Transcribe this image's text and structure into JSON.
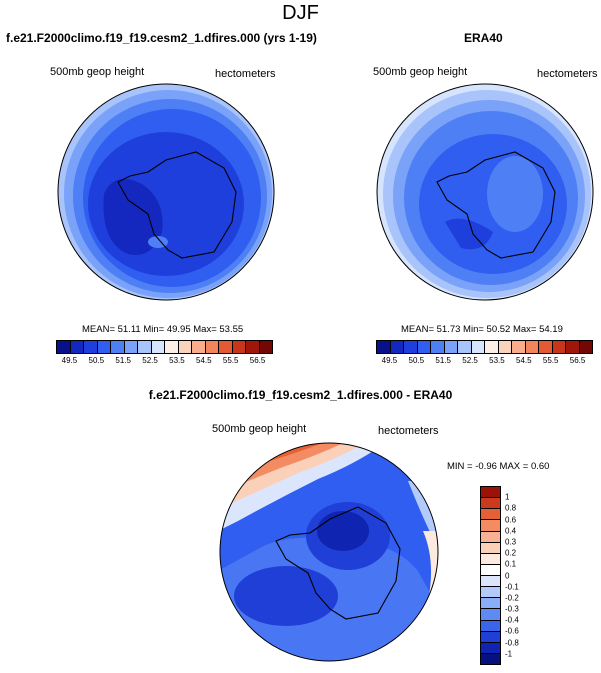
{
  "title": "DJF",
  "panels": {
    "left": {
      "title": "f.e21.F2000climo.f19_f19.cesm2_1.dfires.000 (yrs 1-19)",
      "variable": "500mb geop height",
      "units": "hectometers",
      "stats": "MEAN=  51.11   Min=  49.95   Max=  53.55"
    },
    "right": {
      "title": "ERA40",
      "variable": "500mb geop height",
      "units": "hectometers",
      "stats": "MEAN=  51.73   Min=  50.52   Max=  54.19"
    },
    "diff": {
      "title": "f.e21.F2000climo.f19_f19.cesm2_1.dfires.000 - ERA40",
      "variable": "500mb geop height",
      "units": "hectometers",
      "stats": "MIN =  -0.96  MAX =   0.60"
    }
  },
  "colorbar_abs": {
    "ticks": [
      "49.5",
      "50.5",
      "51.5",
      "52.5",
      "53.5",
      "54.5",
      "55.5",
      "56.5"
    ],
    "colors": [
      "#08108c",
      "#1428bf",
      "#1e3fdc",
      "#2f5ef0",
      "#4f7ff5",
      "#7aa2f8",
      "#a9c4fb",
      "#d7e4fd",
      "#fbeee6",
      "#fbd3bc",
      "#f8ae8c",
      "#f3855c",
      "#e45a35",
      "#c9341c",
      "#a0170a",
      "#750606"
    ]
  },
  "colorbar_diff": {
    "ticks": [
      "1",
      "0.8",
      "0.6",
      "0.4",
      "0.3",
      "0.2",
      "0.1",
      "0",
      "-0.1",
      "-0.2",
      "-0.3",
      "-0.4",
      "-0.6",
      "-0.8",
      "-1"
    ],
    "colors": [
      "#9b1208",
      "#cc3a1e",
      "#e66035",
      "#f48c63",
      "#f9b193",
      "#fbd0b8",
      "#fdeade",
      "#ffffff",
      "#dbe6fd",
      "#b3cbfb",
      "#8aaef8",
      "#5f8af4",
      "#3a64ea",
      "#1f3fd6",
      "#0f24b0",
      "#07107f"
    ]
  }
}
